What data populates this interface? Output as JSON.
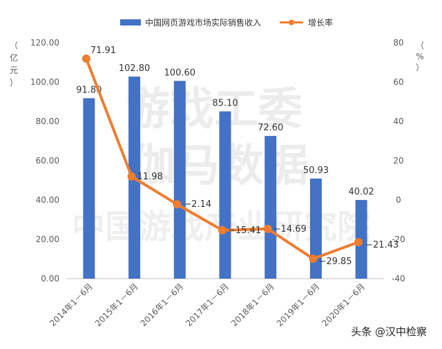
{
  "chart_data": {
    "type": "bar+line",
    "categories": [
      "2014年1－6月",
      "2015年1－6月",
      "2016年1－6月",
      "2017年1－6月",
      "2018年1－6月",
      "2019年1－6月",
      "2020年1－6月"
    ],
    "series": [
      {
        "name": "中国网页游戏市场实际销售收入",
        "type": "bar",
        "axis": "left",
        "color": "#4472c4",
        "values": [
          91.8,
          102.8,
          100.6,
          85.1,
          72.6,
          50.93,
          40.02
        ],
        "labels": [
          "91.80",
          "102.80",
          "100.60",
          "85.10",
          "72.60",
          "50.93",
          "40.02"
        ]
      },
      {
        "name": "增长率",
        "type": "line",
        "axis": "right",
        "color": "#ed7d31",
        "values": [
          71.91,
          11.98,
          -2.14,
          -15.41,
          -14.69,
          -29.85,
          -21.43
        ],
        "labels": [
          "71.91",
          "11.98",
          "−2.14",
          "−15.41",
          "−14.69",
          "−29.85",
          "−21.43"
        ]
      }
    ],
    "left_axis": {
      "label_chars": [
        "（",
        "亿",
        "元",
        "）"
      ],
      "ylim": [
        0,
        120
      ],
      "ticks": [
        0,
        20,
        40,
        60,
        80,
        100,
        120
      ],
      "tick_labels": [
        "0.00",
        "20.00",
        "40.00",
        "60.00",
        "80.00",
        "100.00",
        "120.00"
      ]
    },
    "right_axis": {
      "label_chars": [
        "（",
        "%",
        "）"
      ],
      "ylim": [
        -40,
        80
      ],
      "ticks": [
        -40,
        -20,
        0,
        20,
        40,
        60,
        80
      ],
      "tick_labels": [
        "-40",
        "-20",
        "0",
        "20",
        "40",
        "60",
        "80"
      ]
    },
    "legend_position": "top-center",
    "watermark_lines": [
      "游戏工委",
      "伽马数据",
      "中国游戏产业研究院"
    ]
  },
  "footer": {
    "credit": "头条 @汉中检察"
  }
}
